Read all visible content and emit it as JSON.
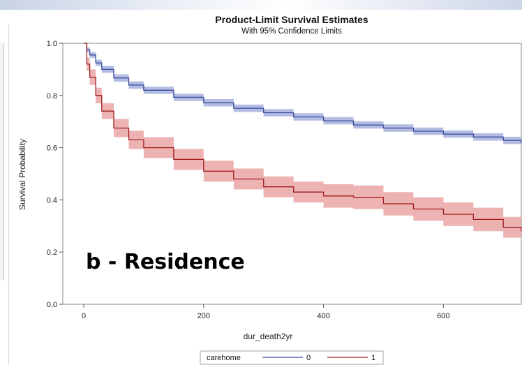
{
  "chart_data": {
    "type": "line",
    "title": "Product-Limit Survival Estimates",
    "subtitle": "With 95% Confidence Limits",
    "xlabel": "dur_death2yr",
    "ylabel": "Survival Probability",
    "xlim": [
      -35,
      730
    ],
    "ylim": [
      0,
      1.0
    ],
    "xticks": [
      0,
      200,
      400,
      600
    ],
    "yticks": [
      0.0,
      0.2,
      0.4,
      0.6,
      0.8,
      1.0
    ],
    "annotation": "b - Residence",
    "legend": {
      "title": "carehome",
      "placement": "bottom-center"
    },
    "series": [
      {
        "name": "0",
        "color": "#3b4a9a",
        "band_color": "#9aa6d8",
        "x": [
          0,
          5,
          10,
          20,
          30,
          50,
          75,
          100,
          150,
          200,
          250,
          300,
          350,
          400,
          450,
          500,
          550,
          600,
          650,
          700,
          730
        ],
        "y": [
          1.0,
          0.975,
          0.955,
          0.925,
          0.9,
          0.867,
          0.84,
          0.82,
          0.793,
          0.772,
          0.751,
          0.734,
          0.718,
          0.703,
          0.687,
          0.675,
          0.663,
          0.652,
          0.641,
          0.628,
          0.618
        ],
        "lower": [
          1.0,
          0.966,
          0.944,
          0.913,
          0.887,
          0.853,
          0.826,
          0.806,
          0.779,
          0.758,
          0.737,
          0.72,
          0.704,
          0.689,
          0.673,
          0.661,
          0.649,
          0.638,
          0.627,
          0.614,
          0.604
        ],
        "upper": [
          1.0,
          0.984,
          0.966,
          0.937,
          0.913,
          0.881,
          0.854,
          0.834,
          0.807,
          0.786,
          0.765,
          0.748,
          0.732,
          0.717,
          0.701,
          0.689,
          0.677,
          0.666,
          0.655,
          0.642,
          0.632
        ]
      },
      {
        "name": "1",
        "color": "#a11d1d",
        "band_color": "#e79a9a",
        "x": [
          0,
          5,
          10,
          20,
          30,
          50,
          75,
          100,
          150,
          200,
          250,
          300,
          350,
          400,
          450,
          500,
          550,
          600,
          650,
          700,
          730
        ],
        "y": [
          1.0,
          0.92,
          0.87,
          0.8,
          0.74,
          0.675,
          0.63,
          0.6,
          0.555,
          0.51,
          0.48,
          0.45,
          0.43,
          0.415,
          0.41,
          0.385,
          0.365,
          0.345,
          0.325,
          0.295,
          0.28
        ],
        "lower": [
          1.0,
          0.895,
          0.84,
          0.77,
          0.71,
          0.64,
          0.595,
          0.56,
          0.515,
          0.47,
          0.44,
          0.41,
          0.39,
          0.37,
          0.365,
          0.34,
          0.32,
          0.3,
          0.28,
          0.255,
          0.245
        ],
        "upper": [
          1.0,
          0.945,
          0.9,
          0.83,
          0.77,
          0.71,
          0.665,
          0.64,
          0.595,
          0.55,
          0.52,
          0.49,
          0.47,
          0.46,
          0.455,
          0.43,
          0.41,
          0.39,
          0.37,
          0.335,
          0.315
        ]
      }
    ]
  }
}
